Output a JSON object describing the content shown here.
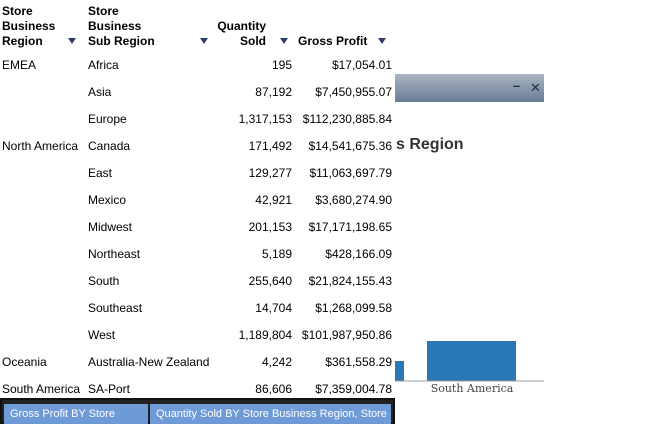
{
  "table": {
    "headers": {
      "region": [
        "Store",
        "Business",
        "Region"
      ],
      "sub_region": [
        "Store",
        "Business",
        "Sub Region"
      ],
      "quantity": [
        "Quantity",
        "Sold"
      ],
      "gross_profit": "Gross Profit"
    },
    "rows": [
      {
        "region": "EMEA",
        "sub": "Africa",
        "qty": "195",
        "gp": "$17,054.01"
      },
      {
        "region": "",
        "sub": "Asia",
        "qty": "87,192",
        "gp": "$7,450,955.07"
      },
      {
        "region": "",
        "sub": "Europe",
        "qty": "1,317,153",
        "gp": "$112,230,885.84"
      },
      {
        "region": "North America",
        "sub": "Canada",
        "qty": "171,492",
        "gp": "$14,541,675.36"
      },
      {
        "region": "",
        "sub": "East",
        "qty": "129,277",
        "gp": "$11,063,697.79"
      },
      {
        "region": "",
        "sub": "Mexico",
        "qty": "42,921",
        "gp": "$3,680,274.90"
      },
      {
        "region": "",
        "sub": "Midwest",
        "qty": "201,153",
        "gp": "$17,171,198.65"
      },
      {
        "region": "",
        "sub": "Northeast",
        "qty": "5,189",
        "gp": "$428,166.09"
      },
      {
        "region": "",
        "sub": "South",
        "qty": "255,640",
        "gp": "$21,824,155.43"
      },
      {
        "region": "",
        "sub": "Southeast",
        "qty": "14,704",
        "gp": "$1,268,099.58"
      },
      {
        "region": "",
        "sub": "West",
        "qty": "1,189,804",
        "gp": "$101,987,950.86"
      },
      {
        "region": "Oceania",
        "sub": "Australia-New Zealand",
        "qty": "4,242",
        "gp": "$361,558.29"
      },
      {
        "region": "South America",
        "sub": "SA-Port",
        "qty": "86,606",
        "gp": "$7,359,004.78"
      }
    ]
  },
  "chart_window": {
    "minimize_label": "–",
    "close_label": "✕",
    "title_fragment": "s Region",
    "x_label": "South America",
    "bar_color": "#2a77b7"
  },
  "tabs": [
    {
      "label": "Gross Profit BY Store"
    },
    {
      "label": "Quantity Sold BY Store Business Region, Store"
    }
  ],
  "icons": {
    "sort": "triangle-down"
  }
}
